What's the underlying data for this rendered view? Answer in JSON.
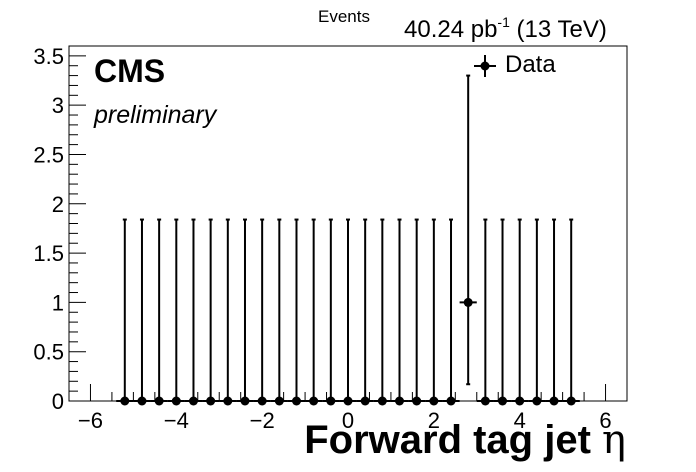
{
  "header": {
    "y_axis_title": "Events",
    "lumi_value": "40.24 pb",
    "lumi_exponent": "-1",
    "lumi_energy": " (13 TeV)",
    "experiment": "CMS",
    "status": "preliminary"
  },
  "chart_data": {
    "type": "scatter",
    "style": "histogram-points-with-error-bars",
    "xlabel": "Forward tag jet",
    "xlabel_symbol": "η",
    "ylabel": "Events",
    "xlim": [
      -6.5,
      6.5
    ],
    "ylim": [
      0,
      3.6
    ],
    "xticks": [
      -6,
      -4,
      -2,
      0,
      2,
      4,
      6
    ],
    "xtick_labels": [
      "−6",
      "−4",
      "−2",
      "0",
      "2",
      "4",
      "6"
    ],
    "yticks": [
      0,
      0.5,
      1,
      1.5,
      2,
      2.5,
      3,
      3.5
    ],
    "ytick_labels": [
      "0",
      "0.5",
      "1",
      "1.5",
      "2",
      "2.5",
      "3",
      "3.5"
    ],
    "grid": false,
    "legend": {
      "position": "top-right",
      "entries": [
        "Data"
      ]
    },
    "series": [
      {
        "name": "Data",
        "bin_width": 0.4,
        "x": [
          -5.2,
          -4.8,
          -4.4,
          -4.0,
          -3.6,
          -3.2,
          -2.8,
          -2.4,
          -2.0,
          -1.6,
          -1.2,
          -0.8,
          -0.4,
          0.0,
          0.4,
          0.8,
          1.2,
          1.6,
          2.0,
          2.4,
          2.8,
          3.2,
          3.6,
          4.0,
          4.4,
          4.8,
          5.2
        ],
        "y": [
          0,
          0,
          0,
          0,
          0,
          0,
          0,
          0,
          0,
          0,
          0,
          0,
          0,
          0,
          0,
          0,
          0,
          0,
          0,
          0,
          1,
          0,
          0,
          0,
          0,
          0,
          0
        ],
        "yerr_low": [
          0,
          0,
          0,
          0,
          0,
          0,
          0,
          0,
          0,
          0,
          0,
          0,
          0,
          0,
          0,
          0,
          0,
          0,
          0,
          0,
          0.83,
          0,
          0,
          0,
          0,
          0,
          0
        ],
        "yerr_high": [
          1.84,
          1.84,
          1.84,
          1.84,
          1.84,
          1.84,
          1.84,
          1.84,
          1.84,
          1.84,
          1.84,
          1.84,
          1.84,
          1.84,
          1.84,
          1.84,
          1.84,
          1.84,
          1.84,
          1.84,
          2.3,
          1.84,
          1.84,
          1.84,
          1.84,
          1.84,
          1.84
        ]
      }
    ]
  }
}
